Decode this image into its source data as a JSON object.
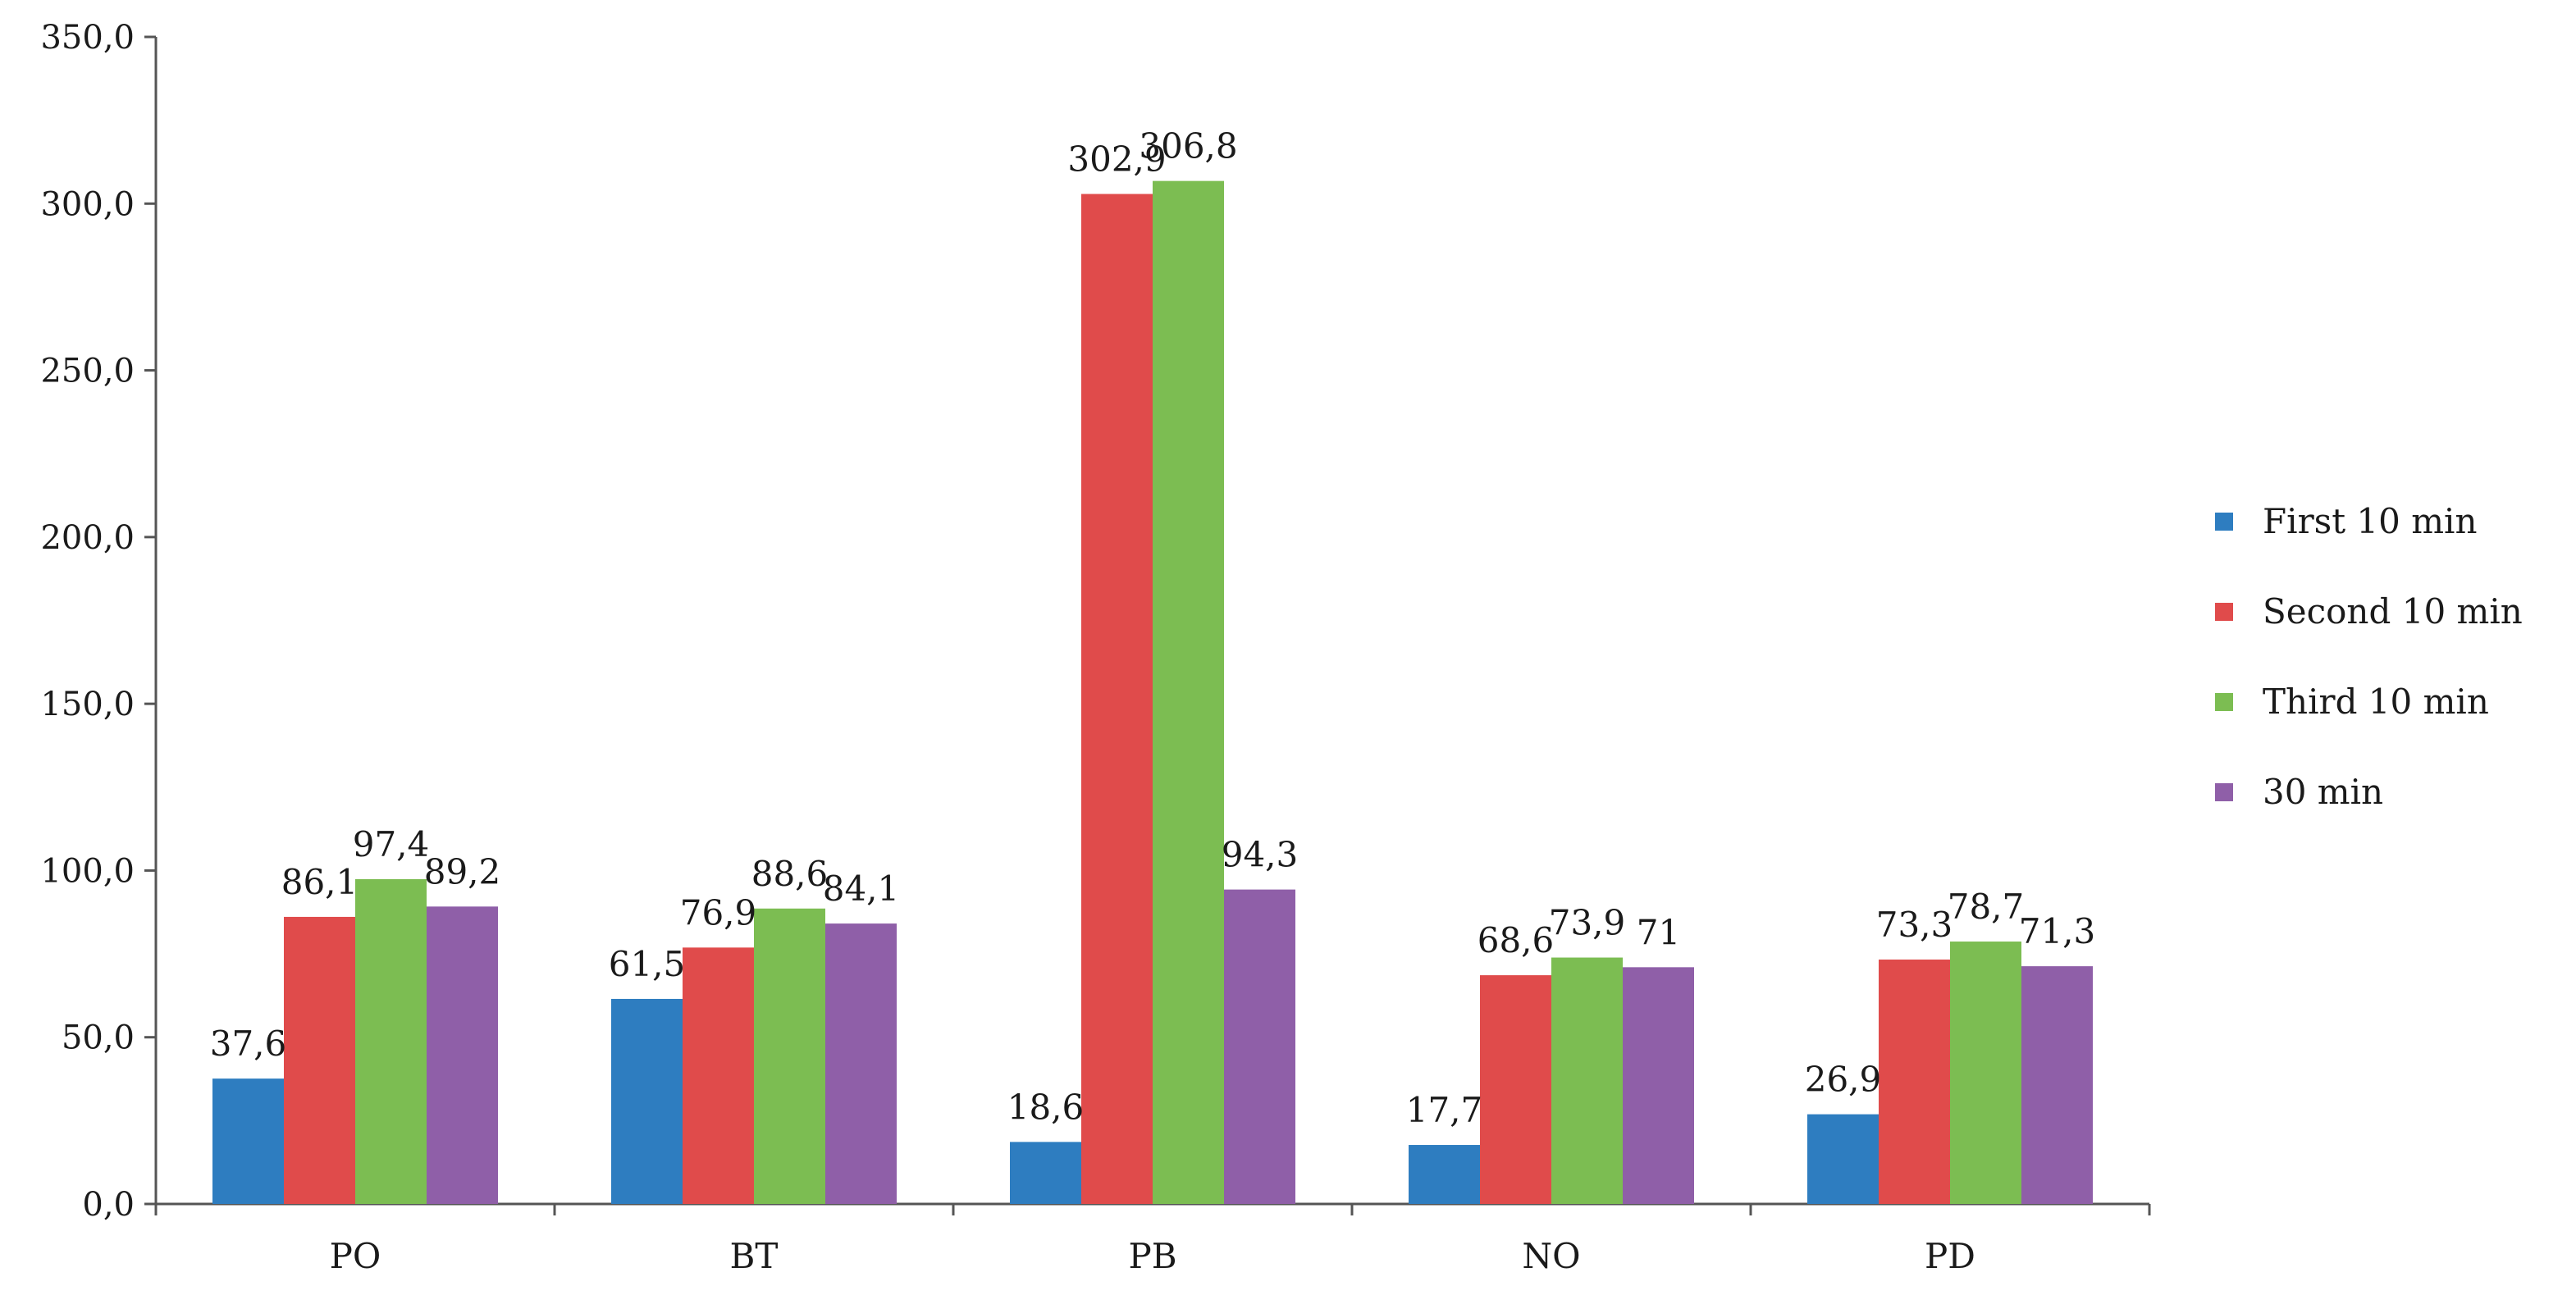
{
  "chart_data": {
    "type": "bar",
    "categories": [
      "PO",
      "BT",
      "PB",
      "NO",
      "PD"
    ],
    "series": [
      {
        "name": "First 10 min",
        "color": "#2e7dc0",
        "values": [
          37.6,
          61.5,
          18.6,
          17.7,
          26.9
        ],
        "labels": [
          "37,6",
          "61,5",
          "18,6",
          "17,7",
          "26,9"
        ]
      },
      {
        "name": "Second 10 min",
        "color": "#e04b4b",
        "values": [
          86.1,
          76.9,
          302.9,
          68.6,
          73.3
        ],
        "labels": [
          "86,1",
          "76,9",
          "302,9",
          "68,6",
          "73,3"
        ]
      },
      {
        "name": "Third 10 min",
        "color": "#7cbd52",
        "values": [
          97.4,
          88.6,
          306.8,
          73.9,
          78.7
        ],
        "labels": [
          "97,4",
          "88,6",
          "306,8",
          "73,9",
          "78,7"
        ]
      },
      {
        "name": "30 min",
        "color": "#8f5fa8",
        "values": [
          89.2,
          84.1,
          94.3,
          71,
          71.3
        ],
        "labels": [
          "89,2",
          "84,1",
          "94,3",
          "71",
          "71,3"
        ]
      }
    ],
    "ylim": [
      0,
      350
    ],
    "yticks": [
      0,
      50,
      100,
      150,
      200,
      250,
      300,
      350
    ],
    "ytick_labels": [
      "0,0",
      "50,0",
      "100,0",
      "150,0",
      "200,0",
      "250,0",
      "300,0",
      "350,0"
    ],
    "grid": false,
    "legend_position": "right"
  }
}
